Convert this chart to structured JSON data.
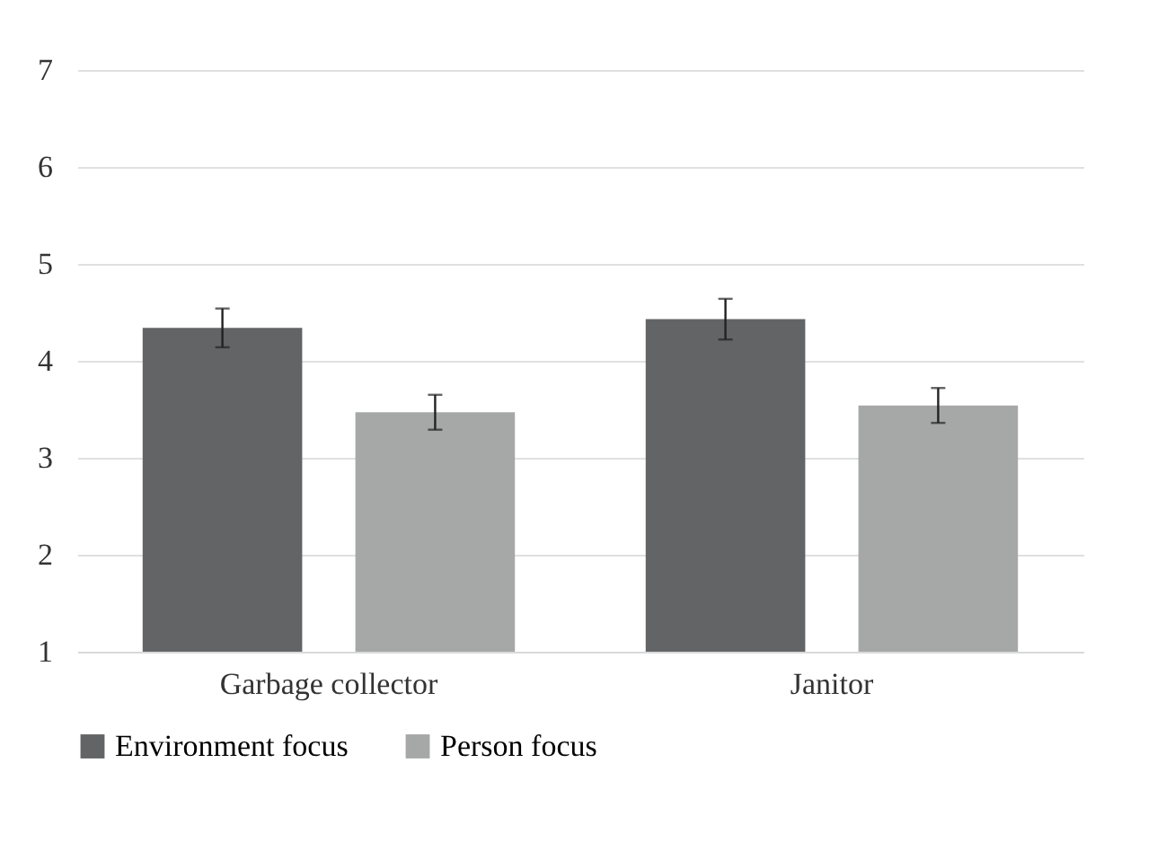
{
  "chart_data": {
    "type": "bar",
    "categories": [
      "Garbage collector",
      "Janitor"
    ],
    "series": [
      {
        "name": "Environment focus",
        "color": "#636466",
        "values": [
          4.34,
          4.43
        ],
        "errors": [
          0.2,
          0.21
        ]
      },
      {
        "name": "Person focus",
        "color": "#a6a8a7",
        "values": [
          3.47,
          3.54
        ],
        "errors": [
          0.18,
          0.18
        ]
      }
    ],
    "ylim": [
      1,
      7
    ],
    "yticks": [
      1,
      2,
      3,
      4,
      5,
      6,
      7
    ],
    "grid": "y",
    "legend": "bottom"
  }
}
